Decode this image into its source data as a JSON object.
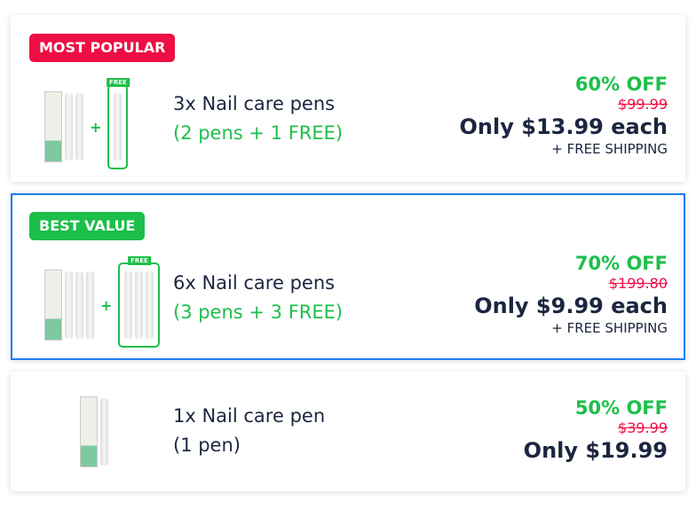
{
  "offers": [
    {
      "badge": "MOST POPULAR",
      "badge_color": "#ee0e44",
      "title": "3x Nail care pens",
      "subtitle": "(2 pens + 1 FREE)",
      "discount": "60% OFF",
      "old_price": "$99.99",
      "price": "Only $13.99 each",
      "shipping": "+ FREE SHIPPING",
      "free_tag": "FREE",
      "selected": false
    },
    {
      "badge": "BEST VALUE",
      "badge_color": "#1cbf4a",
      "title": "6x Nail care pens",
      "subtitle": "(3 pens + 3 FREE)",
      "discount": "70% OFF",
      "old_price": "$199.80",
      "price": "Only $9.99 each",
      "shipping": "+ FREE SHIPPING",
      "free_tag": "FREE",
      "selected": true
    },
    {
      "title": "1x Nail care pen",
      "subtitle": "(1 pen)",
      "discount": "50% OFF",
      "old_price": "$39.99",
      "price": "Only $19.99",
      "selected": false
    }
  ],
  "accent_selected": "#1e7bf2"
}
